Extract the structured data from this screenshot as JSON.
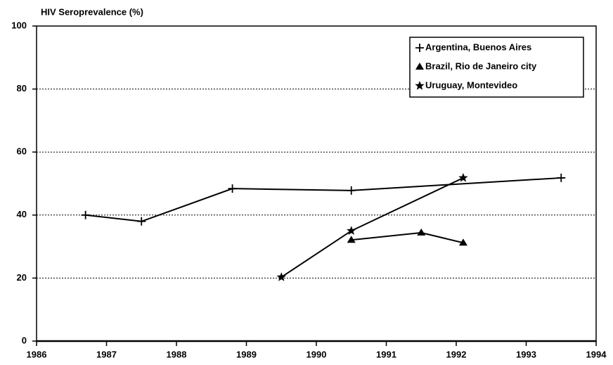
{
  "chart_data": {
    "type": "line",
    "y_label": "HIV Seroprevalence (%)",
    "xlim": [
      1986,
      1994
    ],
    "xticks": [
      1986,
      1987,
      1988,
      1989,
      1990,
      1991,
      1992,
      1993,
      1994
    ],
    "ylim": [
      0,
      100
    ],
    "yticks": [
      0,
      20,
      40,
      60,
      80,
      100
    ],
    "grid": true,
    "legend": "top-right",
    "series": [
      {
        "name": "Argentina, Buenos Aires",
        "color": "#000000",
        "marker": "plus",
        "x": [
          1986.7,
          1987.5,
          1988.8,
          1990.5,
          1993.5
        ],
        "values": [
          40,
          38,
          48.4,
          47.8,
          51.8
        ]
      },
      {
        "name": "Brazil, Rio de Janeiro city",
        "color": "#000000",
        "marker": "triangle",
        "x": [
          1990.5,
          1991.5,
          1992.1
        ],
        "values": [
          32.1,
          34.4,
          31.2
        ]
      },
      {
        "name": "Uruguay, Montevideo",
        "color": "#000000",
        "marker": "star",
        "x": [
          1989.5,
          1990.5,
          1992.1
        ],
        "values": [
          20.3,
          35,
          51.8
        ]
      }
    ]
  }
}
